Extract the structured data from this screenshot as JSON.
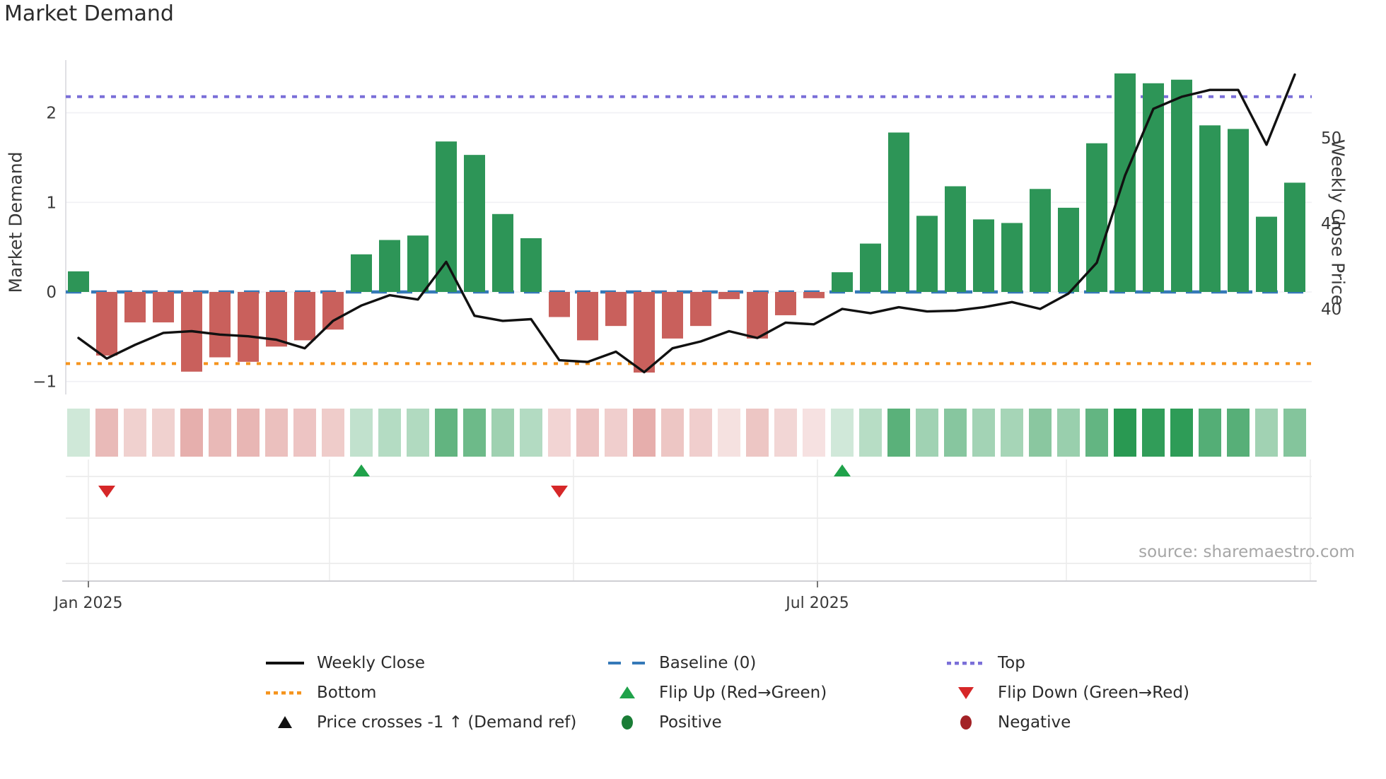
{
  "title": "Market Demand",
  "source": "source: sharemaestro.com",
  "axes": {
    "left": {
      "label": "Market Demand",
      "ticks": [
        2,
        1,
        0,
        -1
      ]
    },
    "right": {
      "label": "Weekly Close Price",
      "ticks": [
        50,
        45,
        40
      ]
    },
    "x": {
      "ticks": [
        "Jan 2025",
        "Jul 2025"
      ]
    }
  },
  "colors": {
    "bar_positive": "#2d9557",
    "bar_negative": "#c9605c",
    "line": "#111111",
    "baseline": "#3579b8",
    "top_line": "#7a6fd8",
    "bottom_line": "#f5941d",
    "flip_up": "#1fa24a",
    "flip_down": "#d62728",
    "positive_dot": "#1a7d36",
    "negative_dot": "#a32226",
    "grid": "#f0f0f4",
    "band_grid": "#ececec",
    "axis_text": "#3a3a3a",
    "spine": "#d8d8de",
    "heat_green_rgb": [
      34,
      150,
      77
    ],
    "heat_red_rgb": [
      198,
      74,
      69
    ]
  },
  "legend": {
    "items": [
      {
        "label": "Weekly Close",
        "swatch": "line-black",
        "row": 0,
        "col": 0
      },
      {
        "label": "Baseline (0)",
        "swatch": "dash-blue",
        "row": 0,
        "col": 1
      },
      {
        "label": "Top",
        "swatch": "dot-purple",
        "row": 0,
        "col": 2
      },
      {
        "label": "Bottom",
        "swatch": "dot-orange",
        "row": 1,
        "col": 0
      },
      {
        "label": "Flip Up (Red→Green)",
        "swatch": "tri-up-green",
        "row": 1,
        "col": 1
      },
      {
        "label": "Flip Down (Green→Red)",
        "swatch": "tri-down-red",
        "row": 1,
        "col": 2
      },
      {
        "label": "Price crosses -1 ↑ (Demand ref)",
        "swatch": "tri-up-black",
        "row": 2,
        "col": 0
      },
      {
        "label": "Positive",
        "swatch": "circle-green",
        "row": 2,
        "col": 1
      },
      {
        "label": "Negative",
        "swatch": "circle-darkred",
        "row": 2,
        "col": 2
      }
    ]
  },
  "chart_data": {
    "type": "combo-bar-line-heatmap",
    "x_unit": "week",
    "week_count": 44,
    "x_tick_labels": [
      {
        "label": "Jan 2025",
        "week": 1
      },
      {
        "label": "Jul 2025",
        "week": 27
      }
    ],
    "series": [
      {
        "name": "Market Demand",
        "type": "bar",
        "axis": "left",
        "values": [
          0.23,
          -0.71,
          -0.34,
          -0.34,
          -0.89,
          -0.73,
          -0.78,
          -0.61,
          -0.54,
          -0.42,
          0.42,
          0.58,
          0.63,
          1.68,
          1.53,
          0.87,
          0.6,
          -0.28,
          -0.54,
          -0.38,
          -0.9,
          -0.52,
          -0.38,
          -0.08,
          -0.52,
          -0.26,
          -0.07,
          0.22,
          0.54,
          1.78,
          0.85,
          1.18,
          0.81,
          0.77,
          1.15,
          0.94,
          1.66,
          2.44,
          2.33,
          2.37,
          1.86,
          1.82,
          0.84,
          1.22
        ]
      },
      {
        "name": "Weekly Close",
        "type": "line",
        "axis": "right",
        "values": [
          38.3,
          37.1,
          37.9,
          38.6,
          38.7,
          38.5,
          38.4,
          38.2,
          37.7,
          39.3,
          40.2,
          40.8,
          40.55,
          42.75,
          39.6,
          39.3,
          39.4,
          37.0,
          36.9,
          37.5,
          36.3,
          37.7,
          38.1,
          38.7,
          38.3,
          39.2,
          39.1,
          40.0,
          39.75,
          40.1,
          39.85,
          39.9,
          40.1,
          40.4,
          40.0,
          40.9,
          42.7,
          47.8,
          51.7,
          52.4,
          52.8,
          52.8,
          49.6,
          53.7
        ]
      }
    ],
    "reference_lines": {
      "baseline": 0,
      "top": 2.18,
      "bottom": -0.8
    },
    "left_axis_range": [
      -1.3,
      2.6
    ],
    "right_axis_ticks": [
      40,
      45,
      50
    ],
    "markers": {
      "flip_up_weeks": [
        11,
        28
      ],
      "flip_down_weeks": [
        2,
        18
      ],
      "price_cross_weeks": []
    },
    "heatmap_strip": "per-week cells colored by Market Demand sign and magnitude (same values as bar series)"
  }
}
